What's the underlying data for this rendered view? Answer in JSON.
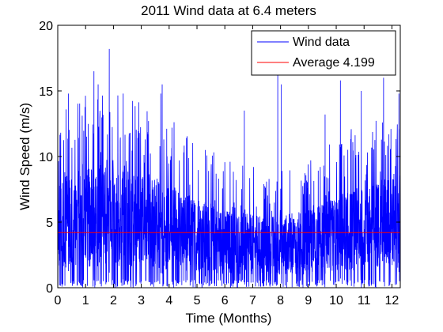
{
  "chart_data": {
    "type": "line",
    "title": "2011 Wind data at 6.4 meters",
    "xlabel": "Time (Months)",
    "ylabel": "Wind Speed (m/s)",
    "xlim": [
      0,
      12.3
    ],
    "ylim": [
      0,
      20
    ],
    "xticks": [
      "0",
      "1",
      "2",
      "3",
      "4",
      "5",
      "6",
      "7",
      "8",
      "9",
      "10",
      "11",
      "12"
    ],
    "yticks": [
      "0",
      "5",
      "10",
      "15",
      "20"
    ],
    "grid": false,
    "legend_position": "top-right",
    "series": [
      {
        "name": "Wind data",
        "color": "#0000ff",
        "mean": 4.199,
        "min": 0,
        "max": 18.2,
        "peaks": [
          {
            "x": 0.38,
            "y": 14.8
          },
          {
            "x": 1.3,
            "y": 16.5
          },
          {
            "x": 1.45,
            "y": 15.5
          },
          {
            "x": 1.85,
            "y": 18.2
          },
          {
            "x": 2.35,
            "y": 14.8
          },
          {
            "x": 2.6,
            "y": 11.8
          },
          {
            "x": 3.7,
            "y": 14.8
          },
          {
            "x": 3.75,
            "y": 15.5
          },
          {
            "x": 4.1,
            "y": 12.2
          },
          {
            "x": 5.3,
            "y": 10.5
          },
          {
            "x": 6.7,
            "y": 13.5
          },
          {
            "x": 7.9,
            "y": 17.0
          },
          {
            "x": 8.03,
            "y": 15.5
          },
          {
            "x": 9.6,
            "y": 13.2
          },
          {
            "x": 10.15,
            "y": 15.8
          },
          {
            "x": 10.9,
            "y": 15.0
          },
          {
            "x": 11.7,
            "y": 16.0
          },
          {
            "x": 12.25,
            "y": 14.8
          }
        ]
      },
      {
        "name": "Average 4.199",
        "color": "#ff0000",
        "constant": 4.199
      }
    ]
  }
}
